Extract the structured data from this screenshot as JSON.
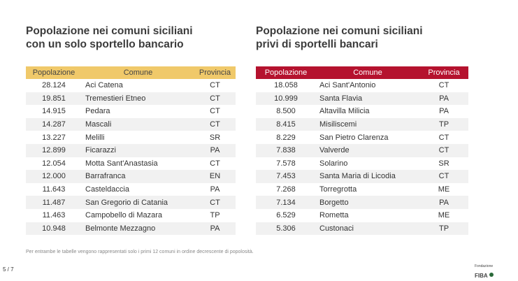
{
  "left_panel": {
    "title_line1": "Popolazione nei comuni siciliani",
    "title_line2": "con un solo sportello bancario",
    "headers": [
      "Popolazione",
      "Comune",
      "Provincia"
    ],
    "rows": [
      [
        "28.124",
        "Aci Catena",
        "CT"
      ],
      [
        "19.851",
        "Tremestieri Etneo",
        "CT"
      ],
      [
        "14.915",
        "Pedara",
        "CT"
      ],
      [
        "14.287",
        "Mascali",
        "CT"
      ],
      [
        "13.227",
        "Melilli",
        "SR"
      ],
      [
        "12.899",
        "Ficarazzi",
        "PA"
      ],
      [
        "12.054",
        "Motta Sant'Anastasia",
        "CT"
      ],
      [
        "12.000",
        "Barrafranca",
        "EN"
      ],
      [
        "11.643",
        "Casteldaccia",
        "PA"
      ],
      [
        "11.487",
        "San Gregorio di Catania",
        "CT"
      ],
      [
        "11.463",
        "Campobello di Mazara",
        "TP"
      ],
      [
        "10.948",
        "Belmonte Mezzagno",
        "PA"
      ]
    ]
  },
  "right_panel": {
    "title_line1": "Popolazione nei comuni siciliani",
    "title_line2": "privi di sportelli bancari",
    "headers": [
      "Popolazione",
      "Comune",
      "Provincia"
    ],
    "rows": [
      [
        "18.058",
        "Aci Sant'Antonio",
        "CT"
      ],
      [
        "10.999",
        "Santa Flavia",
        "PA"
      ],
      [
        "8.500",
        "Altavilla Milicia",
        "PA"
      ],
      [
        "8.415",
        "Misiliscemi",
        "TP"
      ],
      [
        "8.229",
        "San Pietro Clarenza",
        "CT"
      ],
      [
        "7.838",
        "Valverde",
        "CT"
      ],
      [
        "7.578",
        "Solarino",
        "SR"
      ],
      [
        "7.453",
        "Santa Maria di Licodia",
        "CT"
      ],
      [
        "7.268",
        "Torregrotta",
        "ME"
      ],
      [
        "7.134",
        "Borgetto",
        "PA"
      ],
      [
        "6.529",
        "Rometta",
        "ME"
      ],
      [
        "5.306",
        "Custonaci",
        "TP"
      ]
    ]
  },
  "footnote": "Per entrambe le tabelle vengono rappresentati solo i primi 12 comuni in ordine decrescente di popolosità.",
  "page_number": "5 / 7",
  "logo": {
    "line1": "Fondazione",
    "line2": "FIBA"
  },
  "colors": {
    "left_header": "#f0c96a",
    "right_header": "#b5122e"
  }
}
